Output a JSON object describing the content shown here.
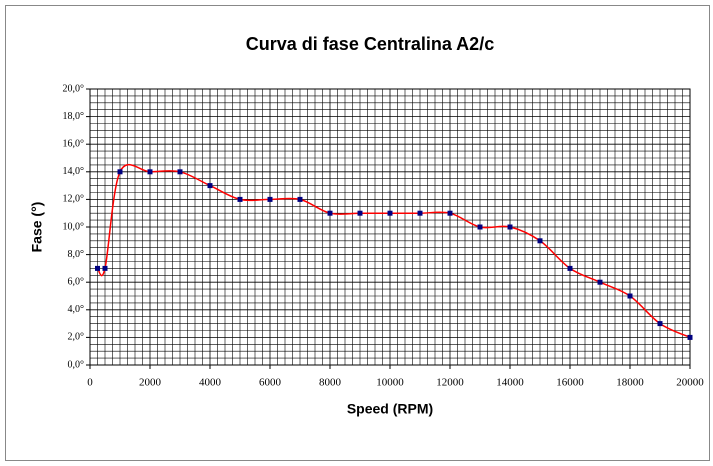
{
  "chart_data": {
    "type": "line",
    "title": "Curva di fase Centralina A2/c",
    "x_label": "Speed (RPM)",
    "y_label": "Fase (°)",
    "x": [
      250,
      500,
      1000,
      2000,
      3000,
      4000,
      5000,
      6000,
      7000,
      8000,
      9000,
      10000,
      11000,
      12000,
      13000,
      14000,
      15000,
      16000,
      17000,
      18000,
      19000,
      20000
    ],
    "series": [
      {
        "name": "Fase",
        "line_color": "#ff0000",
        "marker_color": "#000080",
        "values": [
          7,
          7,
          14,
          14,
          14,
          13,
          12,
          12,
          12,
          11,
          11,
          11,
          11,
          11,
          10,
          10,
          9,
          7,
          6,
          5,
          3,
          2
        ]
      }
    ],
    "xlim": [
      0,
      20000
    ],
    "xticks": [
      0,
      2000,
      4000,
      6000,
      8000,
      10000,
      12000,
      14000,
      16000,
      18000,
      20000
    ],
    "ylim": [
      0,
      20
    ],
    "yticks": [
      {
        "value": 0,
        "label": "0,0°"
      },
      {
        "value": 2,
        "label": "2,0°"
      },
      {
        "value": 4,
        "label": "4,0°"
      },
      {
        "value": 6,
        "label": "6,0°"
      },
      {
        "value": 8,
        "label": "8,0°"
      },
      {
        "value": 10,
        "label": "10,0°"
      },
      {
        "value": 12,
        "label": "12,0°"
      },
      {
        "value": 14,
        "label": "14,0°"
      },
      {
        "value": 16,
        "label": "16,0°"
      },
      {
        "value": 18,
        "label": "18,0°"
      },
      {
        "value": 20,
        "label": "20,0°"
      }
    ],
    "grid": true,
    "smooth": true
  }
}
